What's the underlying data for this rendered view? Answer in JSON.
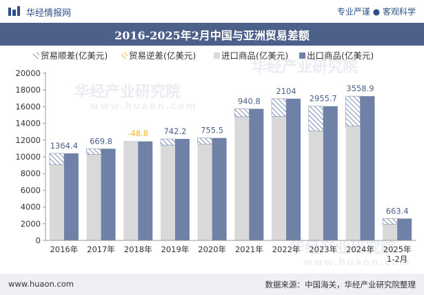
{
  "header": {
    "site_name": "华经情报网",
    "tagline": "专业严谨 ● 客观科学"
  },
  "title": "2016-2025年2月中国与亚洲贸易差额",
  "footer": {
    "url": "www.huaon.com",
    "source": "数据来源：中国海关，华经产业研究院整理"
  },
  "watermarks": [
    "华经产业研究院",
    "www.huaon.com"
  ],
  "colors": {
    "title_bg": "#4c6089",
    "brand": "#2b4f86",
    "import": "#d9d9d9",
    "export": "#6f81a6",
    "surplus_stroke": "#7b8fb3",
    "deficit": "#f5b821",
    "footer_bg": "#eef0f3"
  },
  "chart_data": {
    "type": "bar",
    "categories": [
      "2016年",
      "2017年",
      "2018年",
      "2019年",
      "2020年",
      "2021年",
      "2022年",
      "2023年",
      "2024年",
      "2025年\n1-2月"
    ],
    "legend": [
      {
        "name": "贸易顺差(亿美元)",
        "style": "hatch"
      },
      {
        "name": "贸易逆差(亿美元)",
        "style": "hatch-yellow"
      },
      {
        "name": "进口商品(亿美元)",
        "style": "solid-light"
      },
      {
        "name": "出口商品(亿美元)",
        "style": "solid-dark"
      }
    ],
    "series": [
      {
        "name": "进口商品(亿美元)",
        "values": [
          9050,
          10300,
          11900,
          11400,
          11500,
          14800,
          14850,
          13100,
          13700,
          1950
        ]
      },
      {
        "name": "出口商品(亿美元)",
        "values": [
          10414,
          10970,
          11851,
          12142,
          12255,
          15741,
          16954,
          16056,
          17259,
          2613
        ]
      }
    ],
    "balance": {
      "values": [
        1364.4,
        669.8,
        -48.8,
        742.2,
        755.5,
        940.8,
        2104,
        2955.7,
        3558.9,
        663.4
      ],
      "labels": [
        "1364.4",
        "669.8",
        "-48.8",
        "742.2",
        "755.5",
        "940.8",
        "2104",
        "2955.7",
        "3558.9",
        "663.4"
      ]
    },
    "y_ticks": [
      "0",
      "2000",
      "4000",
      "6000",
      "8000",
      "10000",
      "12000",
      "14000",
      "16000",
      "18000",
      "20000"
    ],
    "ylim": [
      0,
      20000
    ],
    "grid": false,
    "legend_position": "top"
  }
}
